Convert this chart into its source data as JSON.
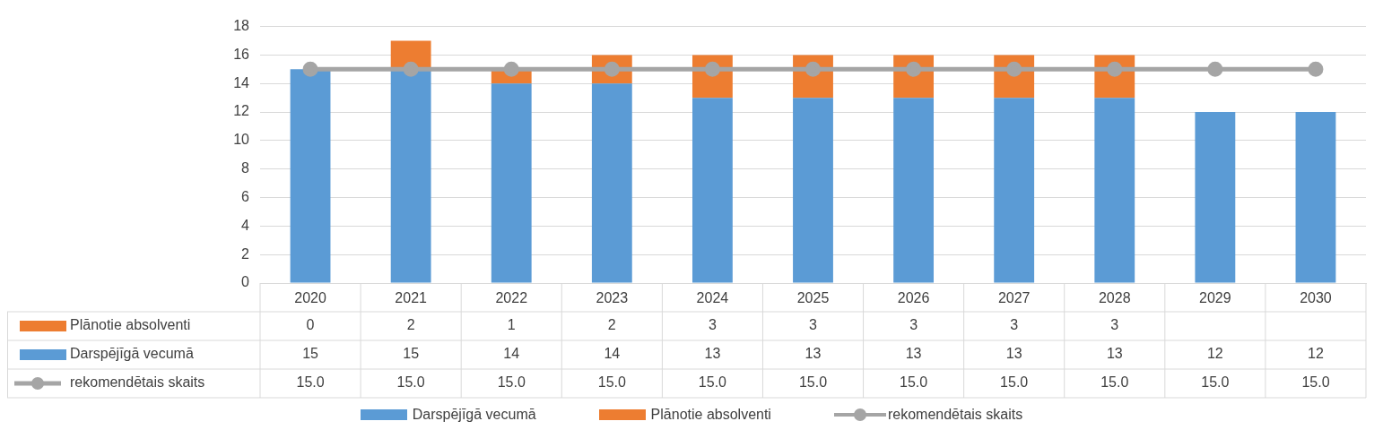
{
  "chart_data": {
    "type": "bar",
    "stacked": true,
    "categories": [
      "2020",
      "2021",
      "2022",
      "2023",
      "2024",
      "2025",
      "2026",
      "2027",
      "2028",
      "2029",
      "2030"
    ],
    "series": [
      {
        "name": "Darspējīgā vecumā",
        "color": "#5b9bd5",
        "values": [
          15,
          15,
          14,
          14,
          13,
          13,
          13,
          13,
          13,
          12,
          12
        ],
        "value_labels": [
          "15",
          "15",
          "14",
          "14",
          "13",
          "13",
          "13",
          "13",
          "13",
          "12",
          "12"
        ]
      },
      {
        "name": "Plānotie absolventi",
        "color": "#ed7d31",
        "values": [
          0,
          2,
          1,
          2,
          3,
          3,
          3,
          3,
          3,
          null,
          null
        ],
        "value_labels": [
          "0",
          "2",
          "1",
          "2",
          "3",
          "3",
          "3",
          "3",
          "3",
          null,
          null
        ]
      },
      {
        "name": "rekomendētais skaits",
        "type": "line",
        "color": "#a5a5a5",
        "values": [
          15,
          15,
          15,
          15,
          15,
          15,
          15,
          15,
          15,
          15,
          15
        ],
        "value_labels": [
          "15.0",
          "15.0",
          "15.0",
          "15.0",
          "15.0",
          "15.0",
          "15.0",
          "15.0",
          "15.0",
          "15.0",
          "15.0"
        ]
      }
    ],
    "ylim": [
      0,
      18
    ],
    "yticks": [
      0,
      2,
      4,
      6,
      8,
      10,
      12,
      14,
      16,
      18
    ],
    "grid": "y",
    "legend": "bottom",
    "marker": "circle"
  }
}
